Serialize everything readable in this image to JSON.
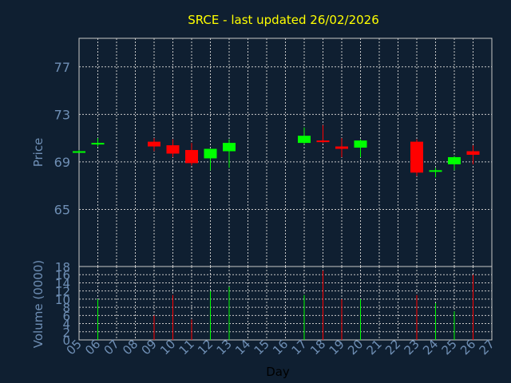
{
  "chart_data": {
    "type": "candlestick",
    "title": "SRCE - last updated 26/02/2026",
    "xlabel": "Day",
    "price_panel": {
      "ylabel": "Price",
      "ylim": [
        60.2,
        79.4
      ],
      "yticks": [
        65,
        69,
        73,
        77
      ],
      "grid": true
    },
    "volume_panel": {
      "ylabel": "Volume (0000)",
      "ylim": [
        0,
        18
      ],
      "yticks": [
        0,
        2,
        4,
        6,
        8,
        10,
        12,
        14,
        16,
        18
      ],
      "grid": true
    },
    "x_ticks": [
      "05",
      "06",
      "07",
      "08",
      "09",
      "10",
      "11",
      "12",
      "13",
      "14",
      "15",
      "16",
      "17",
      "18",
      "19",
      "20",
      "21",
      "22",
      "23",
      "24",
      "25",
      "26",
      "27"
    ],
    "x_range": [
      5,
      27
    ],
    "colors": {
      "up": "#00ff00",
      "down": "#ff0000",
      "text": "#6f8fb5",
      "title": "#ffff00"
    },
    "candles": [
      {
        "day": 5,
        "open": 69.9,
        "high": 70.0,
        "low": 69.8,
        "close": 69.9,
        "volume": 0
      },
      {
        "day": 6,
        "open": 70.5,
        "high": 71.0,
        "low": 70.3,
        "close": 70.6,
        "volume": 10
      },
      {
        "day": 9,
        "open": 70.7,
        "high": 71.0,
        "low": 69.9,
        "close": 70.3,
        "volume": 6
      },
      {
        "day": 10,
        "open": 70.4,
        "high": 70.9,
        "low": 69.4,
        "close": 69.7,
        "volume": 11
      },
      {
        "day": 11,
        "open": 70.0,
        "high": 70.6,
        "low": 68.7,
        "close": 68.9,
        "volume": 5
      },
      {
        "day": 12,
        "open": 69.3,
        "high": 70.1,
        "low": 68.3,
        "close": 70.1,
        "volume": 12
      },
      {
        "day": 13,
        "open": 69.9,
        "high": 70.9,
        "low": 68.5,
        "close": 70.6,
        "volume": 13
      },
      {
        "day": 17,
        "open": 70.6,
        "high": 71.9,
        "low": 70.5,
        "close": 71.2,
        "volume": 11
      },
      {
        "day": 18,
        "open": 70.8,
        "high": 72.1,
        "low": 70.6,
        "close": 70.7,
        "volume": 17
      },
      {
        "day": 19,
        "open": 70.3,
        "high": 71.0,
        "low": 69.4,
        "close": 70.1,
        "volume": 10
      },
      {
        "day": 20,
        "open": 70.2,
        "high": 70.9,
        "low": 69.4,
        "close": 70.8,
        "volume": 10
      },
      {
        "day": 23,
        "open": 70.7,
        "high": 70.9,
        "low": 67.8,
        "close": 68.1,
        "volume": 11
      },
      {
        "day": 24,
        "open": 68.3,
        "high": 68.5,
        "low": 67.7,
        "close": 68.3,
        "volume": 9
      },
      {
        "day": 25,
        "open": 68.8,
        "high": 69.5,
        "low": 68.3,
        "close": 69.4,
        "volume": 7
      },
      {
        "day": 26,
        "open": 69.9,
        "high": 70.4,
        "low": 68.8,
        "close": 69.6,
        "volume": 16
      }
    ]
  }
}
